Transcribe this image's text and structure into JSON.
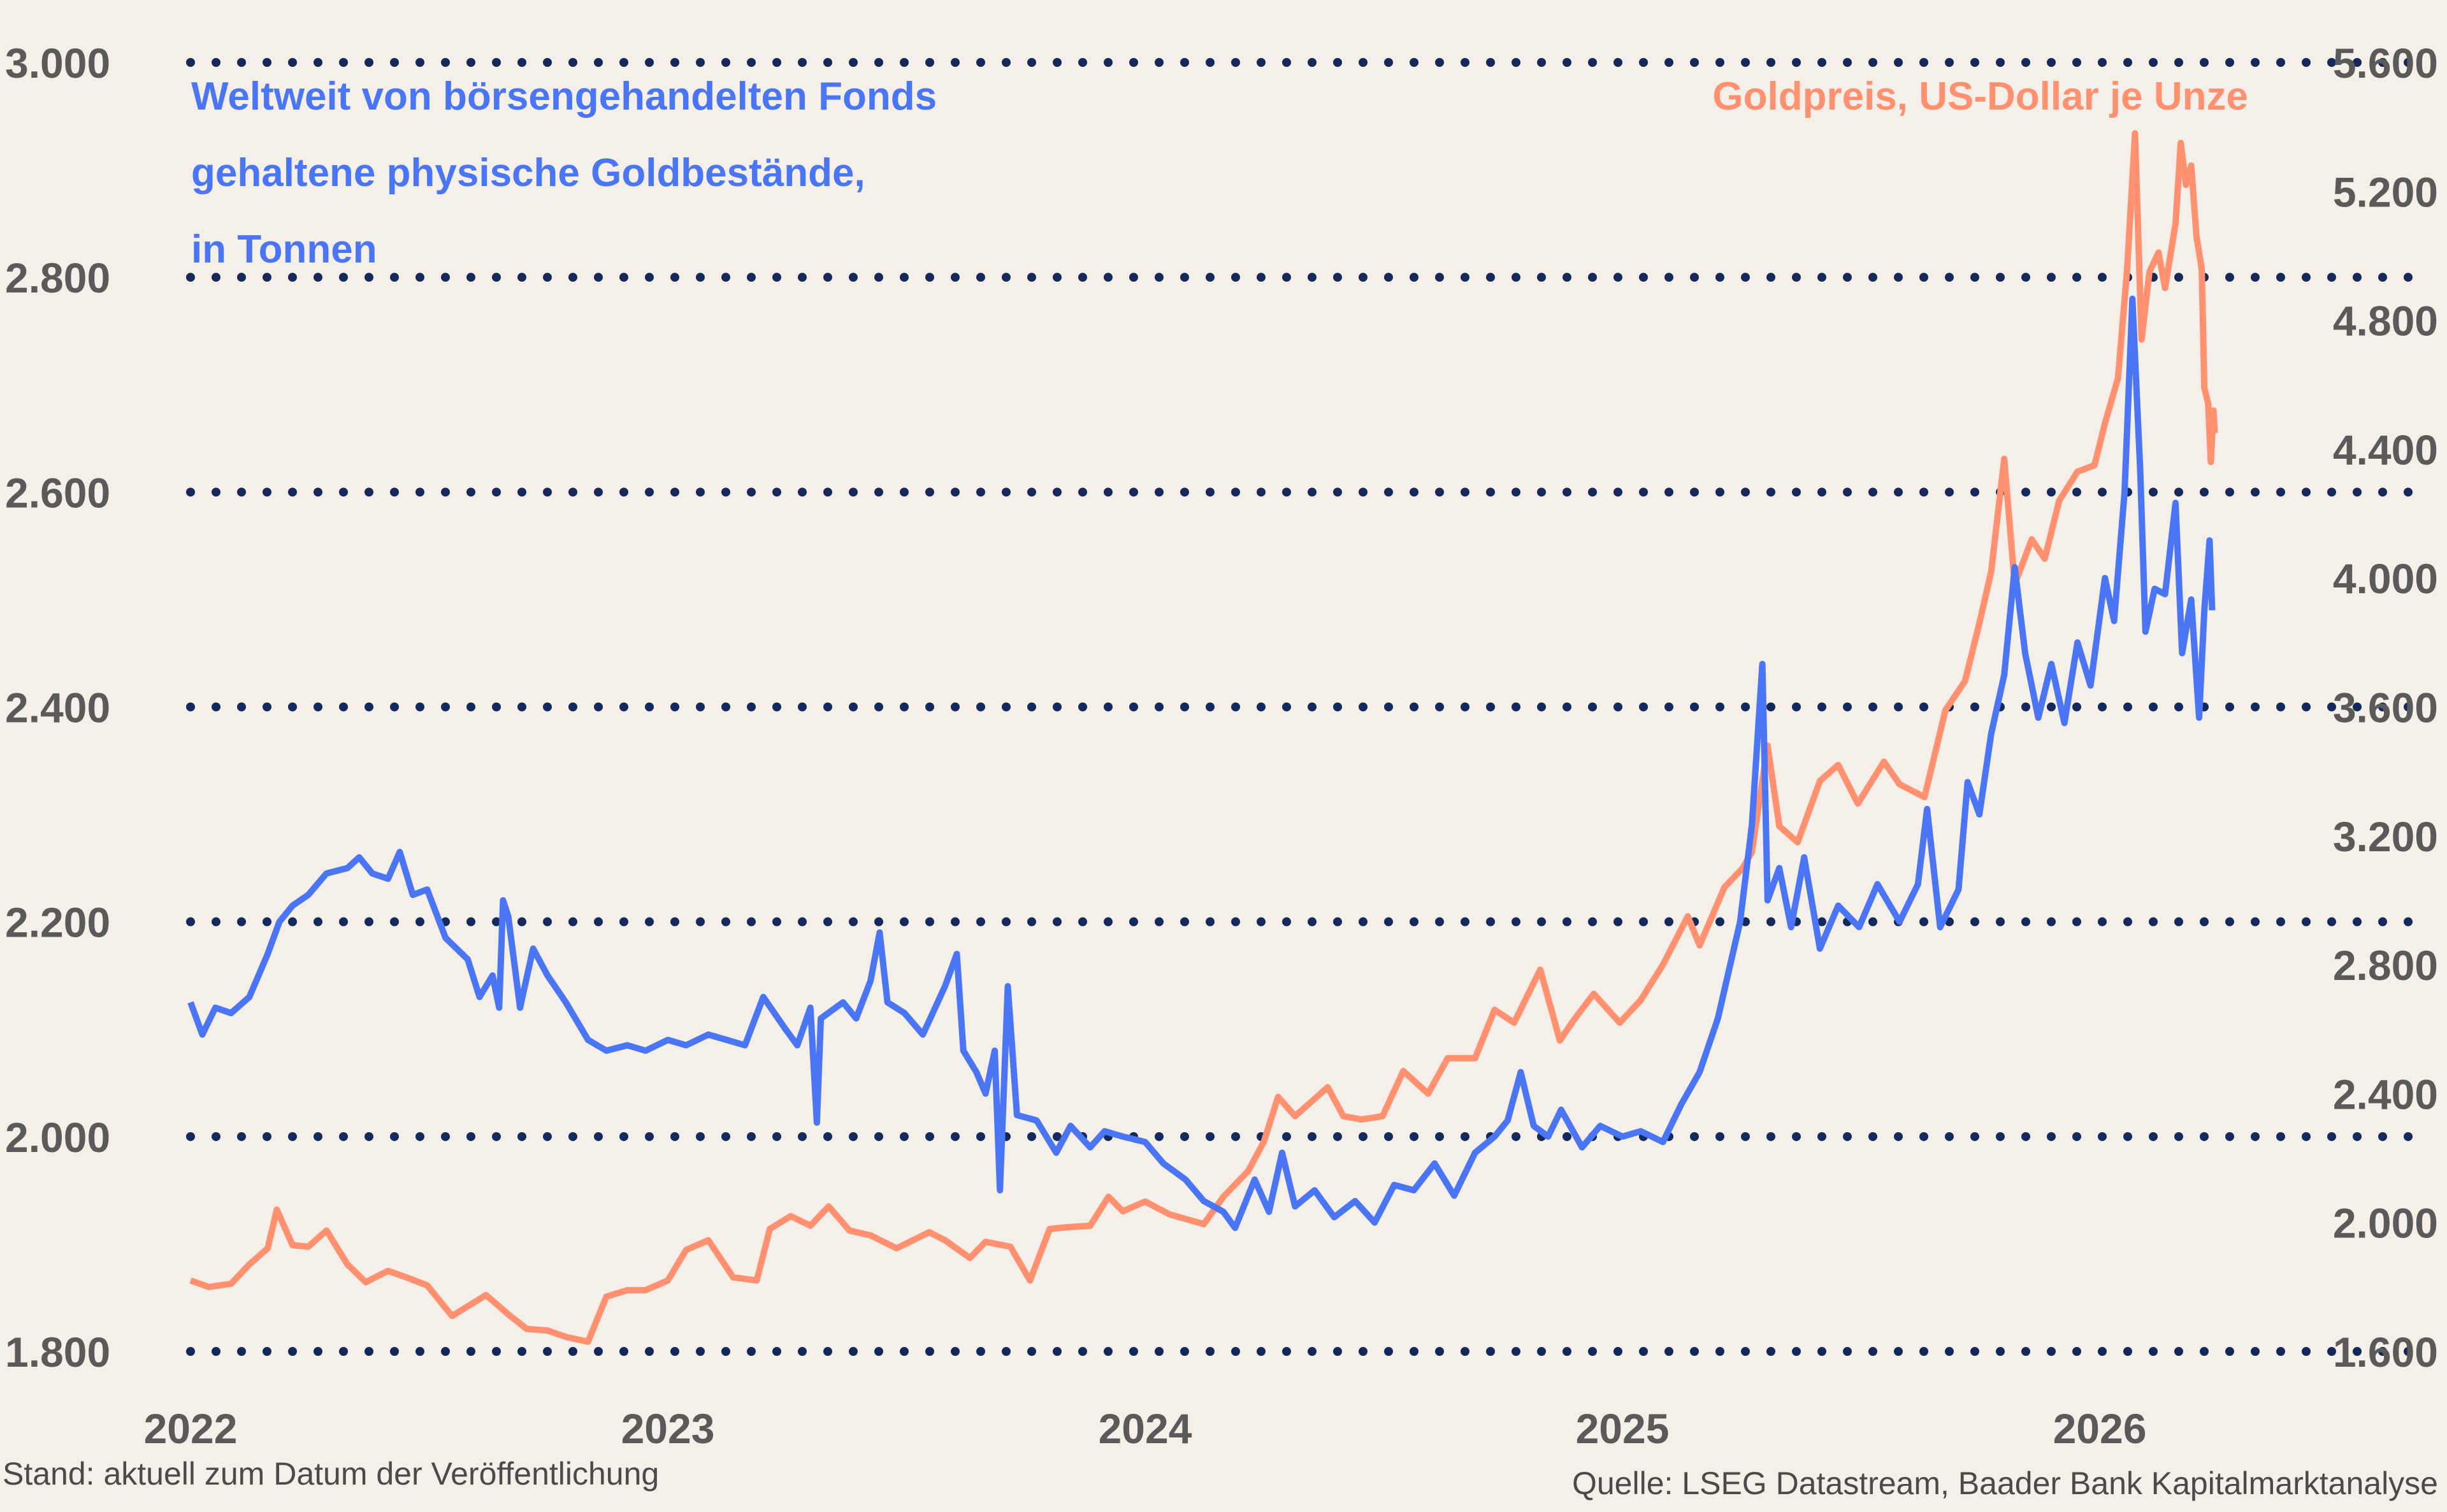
{
  "chart_data": {
    "type": "line",
    "title": "",
    "left_axis": {
      "label_lines": [
        "Weltweit von börsengehandelten Fonds",
        "gehaltene physische Goldbestände,",
        "in Tonnen"
      ],
      "ticks": [
        "3.000",
        "2.800",
        "2.600",
        "2.400",
        "2.200",
        "2.000",
        "1.800"
      ],
      "ylim": [
        1800,
        3000
      ]
    },
    "right_axis": {
      "label": "Goldpreis, US-Dollar je Unze",
      "ticks": [
        "5.600",
        "5.200",
        "4.800",
        "4.400",
        "4.000",
        "3.600",
        "3.200",
        "2.800",
        "2.400",
        "2.000",
        "1.600"
      ],
      "ylim": [
        1600,
        5600
      ]
    },
    "x_ticks": [
      "2022",
      "2023",
      "2024",
      "2025",
      "2026"
    ],
    "grid": "dotted horizontal",
    "colors": {
      "etf": "#4a76f5",
      "gold": "#ff9070",
      "grid": "#13295a",
      "background": "#f5efe9"
    },
    "series": [
      {
        "name": "Weltweit von börsengehandelten Fonds gehaltene physische Goldbestände, in Tonnen",
        "axis": "left",
        "points": [
          [
            "2022-01-01",
            2125
          ],
          [
            "2022-01-10",
            2095
          ],
          [
            "2022-01-20",
            2120
          ],
          [
            "2022-02-01",
            2115
          ],
          [
            "2022-02-15",
            2130
          ],
          [
            "2022-03-01",
            2170
          ],
          [
            "2022-03-10",
            2200
          ],
          [
            "2022-03-20",
            2215
          ],
          [
            "2022-04-01",
            2225
          ],
          [
            "2022-04-15",
            2245
          ],
          [
            "2022-05-01",
            2250
          ],
          [
            "2022-05-10",
            2260
          ],
          [
            "2022-05-20",
            2245
          ],
          [
            "2022-06-01",
            2240
          ],
          [
            "2022-06-10",
            2265
          ],
          [
            "2022-06-20",
            2225
          ],
          [
            "2022-07-01",
            2230
          ],
          [
            "2022-07-15",
            2185
          ],
          [
            "2022-08-01",
            2165
          ],
          [
            "2022-08-10",
            2130
          ],
          [
            "2022-08-20",
            2150
          ],
          [
            "2022-08-25",
            2120
          ],
          [
            "2022-08-28",
            2220
          ],
          [
            "2022-09-01",
            2205
          ],
          [
            "2022-09-10",
            2120
          ],
          [
            "2022-09-20",
            2175
          ],
          [
            "2022-10-01",
            2150
          ],
          [
            "2022-10-15",
            2125
          ],
          [
            "2022-11-01",
            2090
          ],
          [
            "2022-11-15",
            2080
          ],
          [
            "2022-12-01",
            2085
          ],
          [
            "2022-12-15",
            2080
          ],
          [
            "2023-01-01",
            2090
          ],
          [
            "2023-01-15",
            2085
          ],
          [
            "2023-02-01",
            2095
          ],
          [
            "2023-02-15",
            2090
          ],
          [
            "2023-03-01",
            2085
          ],
          [
            "2023-03-15",
            2130
          ],
          [
            "2023-04-01",
            2100
          ],
          [
            "2023-04-10",
            2085
          ],
          [
            "2023-04-20",
            2120
          ],
          [
            "2023-04-25",
            2013
          ],
          [
            "2023-04-28",
            2110
          ],
          [
            "2023-05-15",
            2125
          ],
          [
            "2023-05-25",
            2110
          ],
          [
            "2023-06-05",
            2145
          ],
          [
            "2023-06-12",
            2190
          ],
          [
            "2023-06-18",
            2125
          ],
          [
            "2023-07-01",
            2115
          ],
          [
            "2023-07-15",
            2095
          ],
          [
            "2023-08-01",
            2140
          ],
          [
            "2023-08-10",
            2170
          ],
          [
            "2023-08-15",
            2080
          ],
          [
            "2023-08-25",
            2060
          ],
          [
            "2023-09-01",
            2040
          ],
          [
            "2023-09-08",
            2080
          ],
          [
            "2023-09-12",
            1950
          ],
          [
            "2023-09-18",
            2140
          ],
          [
            "2023-09-25",
            2020
          ],
          [
            "2023-10-10",
            2015
          ],
          [
            "2023-10-25",
            1985
          ],
          [
            "2023-11-05",
            2010
          ],
          [
            "2023-11-20",
            1990
          ],
          [
            "2023-12-01",
            2005
          ],
          [
            "2023-12-15",
            2000
          ],
          [
            "2024-01-01",
            1995
          ],
          [
            "2024-01-15",
            1975
          ],
          [
            "2024-02-01",
            1960
          ],
          [
            "2024-02-15",
            1940
          ],
          [
            "2024-03-01",
            1930
          ],
          [
            "2024-03-10",
            1915
          ],
          [
            "2024-03-25",
            1960
          ],
          [
            "2024-04-05",
            1930
          ],
          [
            "2024-04-15",
            1985
          ],
          [
            "2024-04-25",
            1935
          ],
          [
            "2024-05-10",
            1950
          ],
          [
            "2024-05-25",
            1925
          ],
          [
            "2024-06-10",
            1940
          ],
          [
            "2024-06-25",
            1920
          ],
          [
            "2024-07-10",
            1955
          ],
          [
            "2024-07-25",
            1950
          ],
          [
            "2024-08-10",
            1975
          ],
          [
            "2024-08-25",
            1945
          ],
          [
            "2024-09-10",
            1985
          ],
          [
            "2024-09-25",
            2000
          ],
          [
            "2024-10-05",
            2015
          ],
          [
            "2024-10-15",
            2060
          ],
          [
            "2024-10-25",
            2010
          ],
          [
            "2024-11-05",
            2000
          ],
          [
            "2024-11-15",
            2025
          ],
          [
            "2024-12-01",
            1990
          ],
          [
            "2024-12-15",
            2010
          ],
          [
            "2025-01-01",
            2000
          ],
          [
            "2025-01-15",
            2005
          ],
          [
            "2025-02-01",
            1995
          ],
          [
            "2025-02-15",
            2030
          ],
          [
            "2025-03-01",
            2060
          ],
          [
            "2025-03-15",
            2110
          ],
          [
            "2025-04-01",
            2200
          ],
          [
            "2025-04-10",
            2290
          ],
          [
            "2025-04-18",
            2440
          ],
          [
            "2025-04-22",
            2220
          ],
          [
            "2025-05-01",
            2250
          ],
          [
            "2025-05-10",
            2195
          ],
          [
            "2025-05-20",
            2260
          ],
          [
            "2025-06-01",
            2175
          ],
          [
            "2025-06-15",
            2215
          ],
          [
            "2025-07-01",
            2195
          ],
          [
            "2025-07-15",
            2235
          ],
          [
            "2025-08-01",
            2200
          ],
          [
            "2025-08-15",
            2235
          ],
          [
            "2025-08-22",
            2305
          ],
          [
            "2025-09-01",
            2195
          ],
          [
            "2025-09-15",
            2230
          ],
          [
            "2025-09-22",
            2330
          ],
          [
            "2025-10-01",
            2300
          ],
          [
            "2025-10-10",
            2375
          ],
          [
            "2025-10-20",
            2430
          ],
          [
            "2025-10-28",
            2530
          ],
          [
            "2025-11-05",
            2450
          ],
          [
            "2025-11-15",
            2390
          ],
          [
            "2025-11-25",
            2440
          ],
          [
            "2025-12-05",
            2385
          ],
          [
            "2025-12-15",
            2460
          ],
          [
            "2025-12-25",
            2420
          ],
          [
            "2026-01-05",
            2520
          ],
          [
            "2026-01-12",
            2480
          ],
          [
            "2026-01-20",
            2600
          ],
          [
            "2026-01-26",
            2780
          ],
          [
            "2026-02-01",
            2620
          ],
          [
            "2026-02-05",
            2470
          ],
          [
            "2026-02-12",
            2510
          ],
          [
            "2026-02-20",
            2505
          ],
          [
            "2026-02-28",
            2590
          ],
          [
            "2026-03-05",
            2450
          ],
          [
            "2026-03-12",
            2500
          ],
          [
            "2026-03-18",
            2390
          ],
          [
            "2026-03-22",
            2490
          ],
          [
            "2026-03-26",
            2555
          ],
          [
            "2026-03-28",
            2490
          ]
        ]
      },
      {
        "name": "Goldpreis, US-Dollar je Unze",
        "axis": "right",
        "points": [
          [
            "2022-01-01",
            1820
          ],
          [
            "2022-01-15",
            1800
          ],
          [
            "2022-02-01",
            1810
          ],
          [
            "2022-02-15",
            1870
          ],
          [
            "2022-03-01",
            1920
          ],
          [
            "2022-03-08",
            2040
          ],
          [
            "2022-03-20",
            1930
          ],
          [
            "2022-04-01",
            1925
          ],
          [
            "2022-04-15",
            1975
          ],
          [
            "2022-05-01",
            1870
          ],
          [
            "2022-05-15",
            1815
          ],
          [
            "2022-06-01",
            1850
          ],
          [
            "2022-06-15",
            1830
          ],
          [
            "2022-07-01",
            1805
          ],
          [
            "2022-07-20",
            1710
          ],
          [
            "2022-08-15",
            1775
          ],
          [
            "2022-09-01",
            1715
          ],
          [
            "2022-09-15",
            1670
          ],
          [
            "2022-10-01",
            1665
          ],
          [
            "2022-10-15",
            1645
          ],
          [
            "2022-11-01",
            1630
          ],
          [
            "2022-11-15",
            1770
          ],
          [
            "2022-12-01",
            1790
          ],
          [
            "2022-12-15",
            1790
          ],
          [
            "2023-01-01",
            1820
          ],
          [
            "2023-01-15",
            1915
          ],
          [
            "2023-02-01",
            1945
          ],
          [
            "2023-02-20",
            1830
          ],
          [
            "2023-03-10",
            1820
          ],
          [
            "2023-03-20",
            1980
          ],
          [
            "2023-04-05",
            2020
          ],
          [
            "2023-04-20",
            1990
          ],
          [
            "2023-05-04",
            2050
          ],
          [
            "2023-05-20",
            1975
          ],
          [
            "2023-06-05",
            1960
          ],
          [
            "2023-06-25",
            1920
          ],
          [
            "2023-07-20",
            1970
          ],
          [
            "2023-08-01",
            1945
          ],
          [
            "2023-08-20",
            1890
          ],
          [
            "2023-09-01",
            1940
          ],
          [
            "2023-09-20",
            1925
          ],
          [
            "2023-10-05",
            1820
          ],
          [
            "2023-10-20",
            1980
          ],
          [
            "2023-11-01",
            1985
          ],
          [
            "2023-11-20",
            1990
          ],
          [
            "2023-12-04",
            2080
          ],
          [
            "2023-12-15",
            2035
          ],
          [
            "2024-01-01",
            2065
          ],
          [
            "2024-01-20",
            2025
          ],
          [
            "2024-02-15",
            1995
          ],
          [
            "2024-03-01",
            2080
          ],
          [
            "2024-03-20",
            2160
          ],
          [
            "2024-04-01",
            2250
          ],
          [
            "2024-04-12",
            2390
          ],
          [
            "2024-04-25",
            2330
          ],
          [
            "2024-05-20",
            2420
          ],
          [
            "2024-06-01",
            2330
          ],
          [
            "2024-06-15",
            2320
          ],
          [
            "2024-07-01",
            2330
          ],
          [
            "2024-07-17",
            2470
          ],
          [
            "2024-08-05",
            2400
          ],
          [
            "2024-08-20",
            2510
          ],
          [
            "2024-09-10",
            2510
          ],
          [
            "2024-09-25",
            2660
          ],
          [
            "2024-10-10",
            2620
          ],
          [
            "2024-10-30",
            2785
          ],
          [
            "2024-11-14",
            2565
          ],
          [
            "2024-11-25",
            2630
          ],
          [
            "2024-12-10",
            2710
          ],
          [
            "2024-12-30",
            2620
          ],
          [
            "2025-01-15",
            2690
          ],
          [
            "2025-02-01",
            2800
          ],
          [
            "2025-02-20",
            2950
          ],
          [
            "2025-03-01",
            2860
          ],
          [
            "2025-03-20",
            3040
          ],
          [
            "2025-04-03",
            3100
          ],
          [
            "2025-04-10",
            3150
          ],
          [
            "2025-04-22",
            3480
          ],
          [
            "2025-05-01",
            3230
          ],
          [
            "2025-05-15",
            3180
          ],
          [
            "2025-06-01",
            3370
          ],
          [
            "2025-06-15",
            3420
          ],
          [
            "2025-06-30",
            3300
          ],
          [
            "2025-07-20",
            3430
          ],
          [
            "2025-08-01",
            3360
          ],
          [
            "2025-08-20",
            3320
          ],
          [
            "2025-09-05",
            3590
          ],
          [
            "2025-09-20",
            3680
          ],
          [
            "2025-10-01",
            3860
          ],
          [
            "2025-10-10",
            4020
          ],
          [
            "2025-10-20",
            4370
          ],
          [
            "2025-10-28",
            3980
          ],
          [
            "2025-11-10",
            4120
          ],
          [
            "2025-11-20",
            4060
          ],
          [
            "2025-12-01",
            4240
          ],
          [
            "2025-12-15",
            4330
          ],
          [
            "2025-12-28",
            4350
          ],
          [
            "2026-01-05",
            4480
          ],
          [
            "2026-01-15",
            4620
          ],
          [
            "2026-01-22",
            4960
          ],
          [
            "2026-01-28",
            5380
          ],
          [
            "2026-02-02",
            4740
          ],
          [
            "2026-02-08",
            4950
          ],
          [
            "2026-02-15",
            5010
          ],
          [
            "2026-02-20",
            4900
          ],
          [
            "2026-02-28",
            5100
          ],
          [
            "2026-03-04",
            5350
          ],
          [
            "2026-03-08",
            5220
          ],
          [
            "2026-03-12",
            5280
          ],
          [
            "2026-03-16",
            5060
          ],
          [
            "2026-03-20",
            4960
          ],
          [
            "2026-03-22",
            4590
          ],
          [
            "2026-03-25",
            4540
          ],
          [
            "2026-03-27",
            4360
          ],
          [
            "2026-03-29",
            4520
          ],
          [
            "2026-03-30",
            4450
          ]
        ]
      }
    ]
  },
  "footer": {
    "left": "Stand: aktuell zum Datum der Veröffentlichung",
    "right": "Quelle: LSEG Datastream, Baader Bank Kapitalmarktanalyse"
  }
}
